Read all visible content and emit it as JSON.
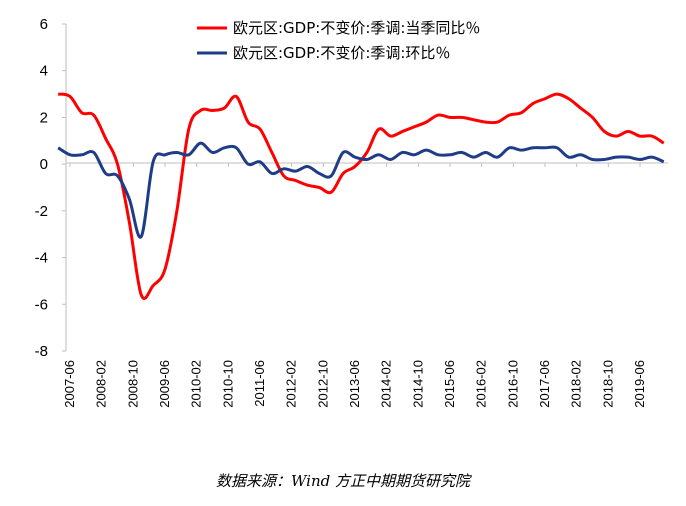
{
  "chart_data": {
    "type": "line",
    "title": "",
    "xlabel": "",
    "ylabel": "",
    "ylim": [
      -8,
      6
    ],
    "yticks": [
      -8,
      -6,
      -4,
      -2,
      0,
      2,
      4,
      6
    ],
    "legend_position": "top-center",
    "x_tick_labels": [
      "2007-06",
      "2008-02",
      "2008-10",
      "2009-06",
      "2010-02",
      "2010-10",
      "2011-06",
      "2012-02",
      "2012-10",
      "2013-06",
      "2014-02",
      "2014-10",
      "2015-06",
      "2016-02",
      "2016-10",
      "2017-06",
      "2018-02",
      "2018-10",
      "2019-06"
    ],
    "x": [
      "2007-03",
      "2007-06",
      "2007-09",
      "2007-12",
      "2008-03",
      "2008-06",
      "2008-09",
      "2008-12",
      "2009-03",
      "2009-06",
      "2009-09",
      "2009-12",
      "2010-03",
      "2010-06",
      "2010-09",
      "2010-12",
      "2011-03",
      "2011-06",
      "2011-09",
      "2011-12",
      "2012-03",
      "2012-06",
      "2012-09",
      "2012-12",
      "2013-03",
      "2013-06",
      "2013-09",
      "2013-12",
      "2014-03",
      "2014-06",
      "2014-09",
      "2014-12",
      "2015-03",
      "2015-06",
      "2015-09",
      "2015-12",
      "2016-03",
      "2016-06",
      "2016-09",
      "2016-12",
      "2017-03",
      "2017-06",
      "2017-09",
      "2017-12",
      "2018-03",
      "2018-06",
      "2018-09",
      "2018-12",
      "2019-03",
      "2019-06",
      "2019-09",
      "2019-12"
    ],
    "series": [
      {
        "name": "欧元区:GDP:不变价:季调:当季同比％",
        "color": "#ff0000",
        "values": [
          3.0,
          2.9,
          2.2,
          2.1,
          1.1,
          0.0,
          -2.5,
          -5.6,
          -5.2,
          -4.5,
          -2.0,
          1.5,
          2.3,
          2.3,
          2.4,
          2.9,
          1.8,
          1.5,
          0.5,
          -0.5,
          -0.7,
          -0.9,
          -1.0,
          -1.2,
          -0.4,
          -0.1,
          0.5,
          1.5,
          1.2,
          1.4,
          1.6,
          1.8,
          2.1,
          2.0,
          2.0,
          1.9,
          1.8,
          1.8,
          2.1,
          2.2,
          2.6,
          2.8,
          3.0,
          2.8,
          2.4,
          2.0,
          1.4,
          1.2,
          1.4,
          1.2,
          1.2,
          0.9
        ]
      },
      {
        "name": "欧元区:GDP:不变价:季调:环比％",
        "color": "#1f3c88",
        "values": [
          0.7,
          0.4,
          0.4,
          0.5,
          -0.4,
          -0.5,
          -1.5,
          -3.1,
          0.1,
          0.4,
          0.5,
          0.4,
          0.9,
          0.5,
          0.7,
          0.7,
          0.0,
          0.1,
          -0.4,
          -0.2,
          -0.3,
          -0.1,
          -0.4,
          -0.5,
          0.5,
          0.3,
          0.2,
          0.4,
          0.2,
          0.5,
          0.4,
          0.6,
          0.4,
          0.4,
          0.5,
          0.3,
          0.5,
          0.3,
          0.7,
          0.6,
          0.7,
          0.7,
          0.7,
          0.3,
          0.4,
          0.2,
          0.2,
          0.3,
          0.3,
          0.2,
          0.3,
          0.1
        ]
      }
    ]
  },
  "footer": {
    "source": "数据来源：Wind 方正中期期货研究院"
  }
}
